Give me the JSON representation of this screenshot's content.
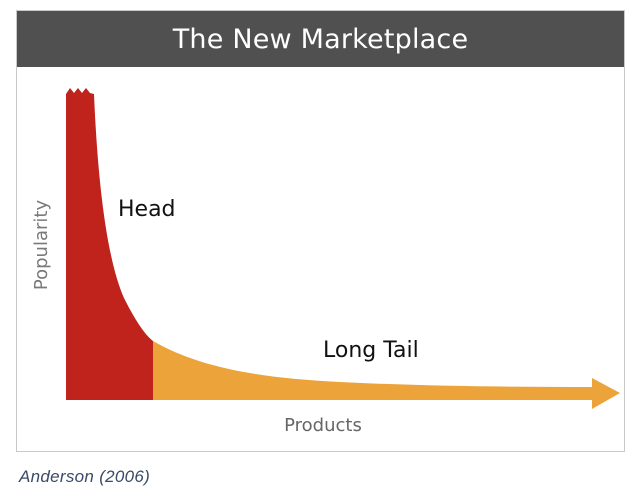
{
  "chart_data": {
    "type": "area",
    "title": "The New Marketplace",
    "xlabel": "Products",
    "ylabel": "Popularity",
    "annotations": [
      {
        "text": "Head",
        "region": "head"
      },
      {
        "text": "Long Tail",
        "region": "tail"
      }
    ],
    "regions": [
      {
        "name": "Head",
        "color": "#c0221c"
      },
      {
        "name": "Long Tail",
        "color": "#eca33a"
      }
    ],
    "grid": false,
    "legend": "none"
  },
  "colors": {
    "title_bar": "#505050",
    "head": "#c0221c",
    "tail": "#eca33a",
    "axis_text": "#666666"
  },
  "caption": "Anderson (2006)"
}
